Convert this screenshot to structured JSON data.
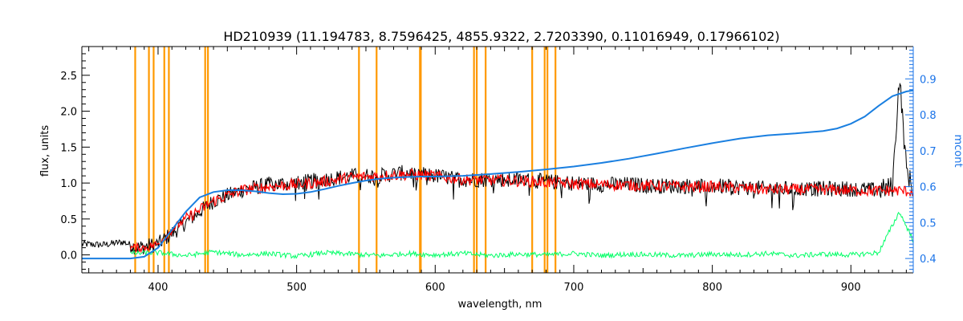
{
  "chart_data": {
    "type": "line",
    "title": "HD210939    (11.194783, 8.7596425, 4855.9322, 2.7203390, 0.11016949, 0.17966102)",
    "xlabel": "wavelength, nm",
    "ylabel": "flux, units",
    "y2label": "mcont",
    "xlim": [
      345,
      945
    ],
    "ylim": [
      -0.25,
      2.9
    ],
    "y2lim": [
      0.36,
      0.99
    ],
    "x_ticks": [
      400,
      500,
      600,
      700,
      800,
      900
    ],
    "y_ticks": [
      0.0,
      0.5,
      1.0,
      1.5,
      2.0,
      2.5
    ],
    "y_tick_labels": [
      "0.0",
      "0.5",
      "1.0",
      "1.5",
      "2.0",
      "2.5"
    ],
    "y2_ticks": [
      0.4,
      0.5,
      0.6,
      0.7,
      0.8,
      0.9
    ],
    "y2_tick_labels": [
      "0.4",
      "0.5",
      "0.6",
      "0.7",
      "0.8",
      "0.9"
    ],
    "grid": false,
    "colors": {
      "observed": "#000000",
      "model": "#ff0000",
      "residual": "#00ff66",
      "continuum": "#1a7fe0",
      "lines": "#ff9900",
      "axis_right": "#1a73e8"
    },
    "marked_lines_nm": [
      383.5,
      393.4,
      396.8,
      404.5,
      407.8,
      434.0,
      436.0,
      545.0,
      557.7,
      589.0,
      589.6,
      628.0,
      630.0,
      636.4,
      670.0,
      679.0,
      681.0,
      686.8
    ],
    "series": [
      {
        "role": "observed",
        "x": [
          345,
          360,
          375,
          385,
          400,
          420,
          440,
          460,
          480,
          500,
          520,
          540,
          560,
          580,
          600,
          620,
          640,
          660,
          680,
          700,
          720,
          740,
          760,
          780,
          800,
          820,
          840,
          860,
          880,
          900,
          920,
          930,
          935,
          940,
          945
        ],
        "y": [
          0.15,
          0.14,
          0.18,
          0.1,
          0.15,
          0.45,
          0.75,
          0.9,
          0.98,
          1.0,
          1.05,
          1.1,
          1.1,
          1.15,
          1.1,
          1.05,
          1.05,
          1.05,
          1.02,
          1.0,
          0.98,
          0.98,
          0.96,
          0.96,
          0.96,
          0.94,
          0.92,
          0.92,
          0.92,
          0.92,
          0.9,
          0.95,
          2.5,
          1.2,
          0.9
        ]
      },
      {
        "role": "model",
        "x": [
          380,
          390,
          400,
          410,
          420,
          440,
          460,
          480,
          500,
          520,
          540,
          560,
          580,
          600,
          620,
          640,
          660,
          680,
          700,
          720,
          740,
          760,
          780,
          800,
          820,
          840,
          860,
          880,
          900,
          920,
          930,
          945
        ],
        "y": [
          0.1,
          0.1,
          0.15,
          0.35,
          0.5,
          0.75,
          0.9,
          0.95,
          0.98,
          1.02,
          1.08,
          1.1,
          1.12,
          1.1,
          1.05,
          1.04,
          1.03,
          1.01,
          0.99,
          0.98,
          0.97,
          0.96,
          0.95,
          0.95,
          0.93,
          0.91,
          0.91,
          0.91,
          0.9,
          0.89,
          0.9,
          0.88
        ]
      },
      {
        "role": "residual",
        "x": [
          380,
          400,
          420,
          440,
          460,
          480,
          500,
          520,
          540,
          560,
          580,
          600,
          620,
          640,
          660,
          680,
          700,
          720,
          740,
          760,
          780,
          800,
          820,
          840,
          860,
          880,
          900,
          920,
          935,
          945
        ],
        "y": [
          0.02,
          0.03,
          -0.01,
          0.04,
          0.0,
          0.02,
          -0.02,
          0.03,
          0.01,
          -0.01,
          0.02,
          0.0,
          0.02,
          -0.01,
          0.01,
          0.0,
          0.02,
          -0.01,
          0.01,
          0.0,
          -0.01,
          0.01,
          0.0,
          0.02,
          -0.01,
          0.01,
          0.0,
          0.03,
          0.6,
          0.2
        ]
      },
      {
        "role": "continuum",
        "axis": "right",
        "x": [
          345,
          380,
          390,
          400,
          410,
          420,
          430,
          440,
          450,
          460,
          470,
          480,
          490,
          500,
          510,
          520,
          530,
          540,
          550,
          560,
          570,
          580,
          590,
          600,
          620,
          640,
          660,
          680,
          700,
          720,
          740,
          760,
          780,
          800,
          820,
          840,
          860,
          880,
          890,
          900,
          910,
          920,
          930,
          940,
          945
        ],
        "y": [
          0.4,
          0.4,
          0.405,
          0.43,
          0.48,
          0.53,
          0.57,
          0.585,
          0.59,
          0.59,
          0.587,
          0.582,
          0.579,
          0.58,
          0.585,
          0.593,
          0.602,
          0.61,
          0.617,
          0.622,
          0.625,
          0.627,
          0.628,
          0.628,
          0.63,
          0.635,
          0.641,
          0.648,
          0.656,
          0.666,
          0.678,
          0.692,
          0.707,
          0.721,
          0.734,
          0.743,
          0.748,
          0.755,
          0.762,
          0.775,
          0.795,
          0.825,
          0.852,
          0.865,
          0.868
        ]
      }
    ]
  }
}
